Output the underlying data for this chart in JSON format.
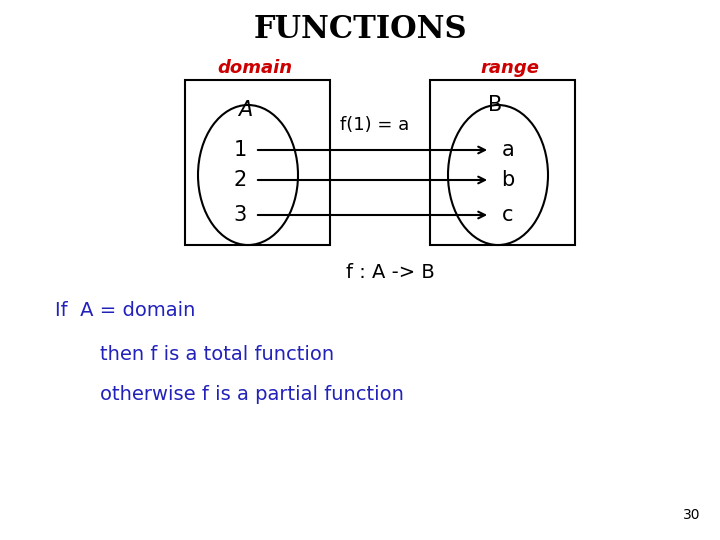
{
  "title": "FUNCTIONS",
  "title_color": "#000000",
  "title_fontsize": 22,
  "domain_label": "domain",
  "range_label": "range",
  "label_color": "#cc0000",
  "label_fontsize": 13,
  "set_A_label": "A",
  "set_B_label": "B",
  "set_label_color": "#000000",
  "set_label_fontsize": 15,
  "domain_elements": [
    "1",
    "2",
    "3"
  ],
  "range_elements": [
    "a",
    "b",
    "c"
  ],
  "element_fontsize": 15,
  "element_color": "#000000",
  "f_label": "f(1) = a",
  "f_label_fontsize": 13,
  "f_label_color": "#000000",
  "mapping_label": "f : A -> B",
  "mapping_fontsize": 14,
  "mapping_color": "#000000",
  "text1": "If  A = domain",
  "text2": "    then f is a total function",
  "text3": "    otherwise f is a partial function",
  "text_color": "#2222bb",
  "text_fontsize": 14,
  "page_number": "30",
  "page_color": "#000000",
  "page_fontsize": 10,
  "bg_color": "#ffffff"
}
